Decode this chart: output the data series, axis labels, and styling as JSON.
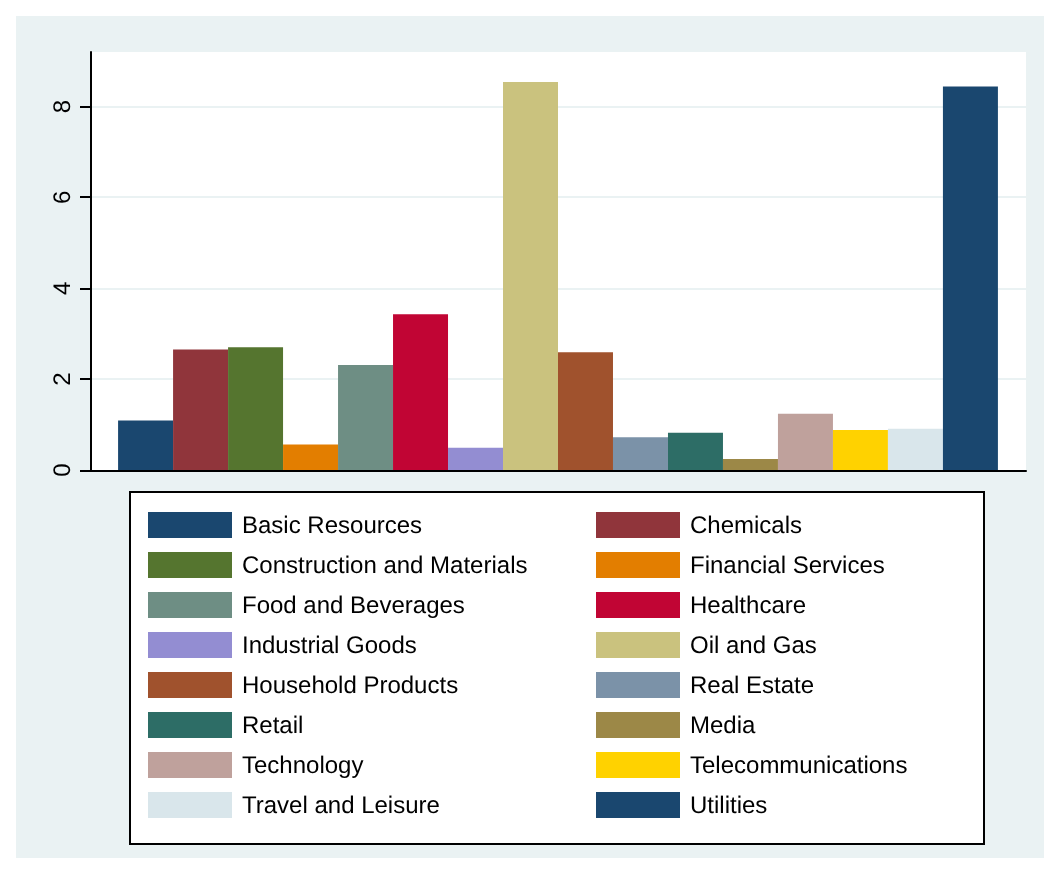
{
  "chart_data": {
    "type": "bar",
    "categories": [
      null
    ],
    "ylim": [
      0,
      9.2
    ],
    "yticks": [
      0,
      2,
      4,
      6,
      8
    ],
    "grid": "y",
    "legend": "bottom",
    "series": [
      {
        "name": "Basic Resources",
        "color": "#1a476f",
        "values": [
          1.09
        ]
      },
      {
        "name": "Chemicals",
        "color": "#90353b",
        "values": [
          2.65
        ]
      },
      {
        "name": "Construction and Materials",
        "color": "#55752f",
        "values": [
          2.7
        ]
      },
      {
        "name": "Financial Services",
        "color": "#e37e00",
        "values": [
          0.56
        ]
      },
      {
        "name": "Food and Beverages",
        "color": "#6e8e84",
        "values": [
          2.31
        ]
      },
      {
        "name": "Healthcare",
        "color": "#c10534",
        "values": [
          3.43
        ]
      },
      {
        "name": "Industrial Goods",
        "color": "#938dd2",
        "values": [
          0.49
        ]
      },
      {
        "name": "Oil and Gas",
        "color": "#cac27e",
        "values": [
          8.54
        ]
      },
      {
        "name": "Household Products",
        "color": "#a0522d",
        "values": [
          2.59
        ]
      },
      {
        "name": "Real Estate",
        "color": "#7b92a8",
        "values": [
          0.72
        ]
      },
      {
        "name": "Retail",
        "color": "#2d6d66",
        "values": [
          0.82
        ]
      },
      {
        "name": "Media",
        "color": "#9c8847",
        "values": [
          0.24
        ]
      },
      {
        "name": "Technology",
        "color": "#bfa19c",
        "values": [
          1.24
        ]
      },
      {
        "name": "Telecommunications",
        "color": "#ffd200",
        "values": [
          0.88
        ]
      },
      {
        "name": "Travel and Leisure",
        "color": "#d9e6eb",
        "values": [
          0.91
        ]
      },
      {
        "name": "Utilities",
        "color": "#1a476f",
        "values": [
          8.44
        ]
      }
    ]
  }
}
